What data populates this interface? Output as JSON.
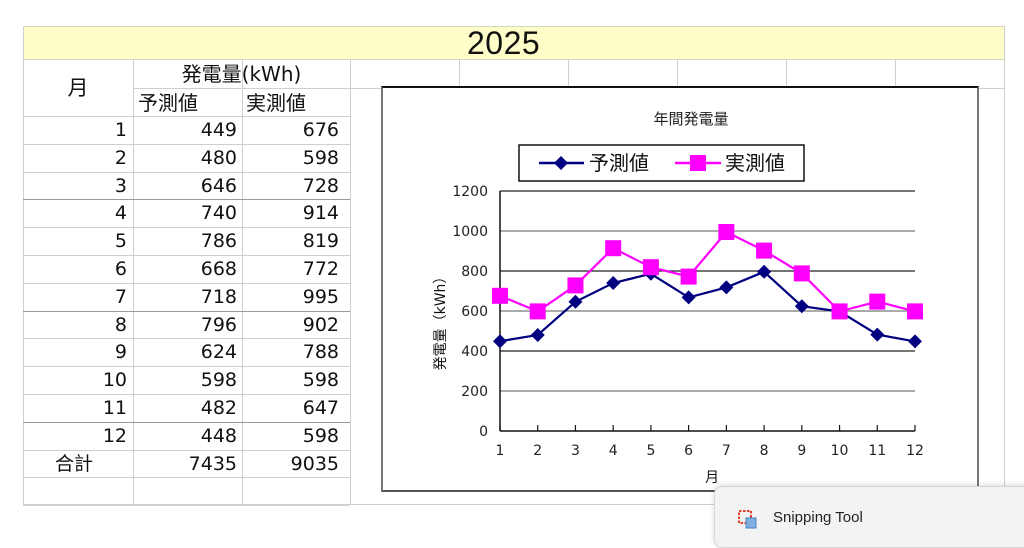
{
  "sheet": {
    "year": "2025",
    "header": {
      "month": "月",
      "group": "発電量(kWh)",
      "col_forecast": "予測値",
      "col_actual": "実測値"
    },
    "rows": [
      {
        "month": "1",
        "forecast": "449",
        "actual": "676"
      },
      {
        "month": "2",
        "forecast": "480",
        "actual": "598"
      },
      {
        "month": "3",
        "forecast": "646",
        "actual": "728"
      },
      {
        "month": "4",
        "forecast": "740",
        "actual": "914"
      },
      {
        "month": "5",
        "forecast": "786",
        "actual": "819"
      },
      {
        "month": "6",
        "forecast": "668",
        "actual": "772"
      },
      {
        "month": "7",
        "forecast": "718",
        "actual": "995"
      },
      {
        "month": "8",
        "forecast": "796",
        "actual": "902"
      },
      {
        "month": "9",
        "forecast": "624",
        "actual": "788"
      },
      {
        "month": "10",
        "forecast": "598",
        "actual": "598"
      },
      {
        "month": "11",
        "forecast": "482",
        "actual": "647"
      },
      {
        "month": "12",
        "forecast": "448",
        "actual": "598"
      }
    ],
    "total": {
      "label": "合計",
      "forecast": "7435",
      "actual": "9035"
    }
  },
  "chart_data": {
    "type": "line",
    "title": "年間発電量",
    "xlabel": "月",
    "ylabel": "発電量（kWh）",
    "categories": [
      "1",
      "2",
      "3",
      "4",
      "5",
      "6",
      "7",
      "8",
      "9",
      "10",
      "11",
      "12"
    ],
    "series": [
      {
        "name": "予測値",
        "color": "#000080",
        "marker": "diamond",
        "values": [
          449,
          480,
          646,
          740,
          786,
          668,
          718,
          796,
          624,
          598,
          482,
          448
        ]
      },
      {
        "name": "実測値",
        "color": "#ff00ff",
        "marker": "square",
        "values": [
          676,
          598,
          728,
          914,
          819,
          772,
          995,
          902,
          788,
          598,
          647,
          598
        ]
      }
    ],
    "ylim": [
      0,
      1200
    ],
    "yticks": [
      "0",
      "200",
      "400",
      "600",
      "800",
      "1000",
      "1200"
    ],
    "grid": true,
    "legend_position": "top"
  },
  "popup": {
    "label": "Snipping Tool",
    "icon": "snipping-tool-icon"
  }
}
